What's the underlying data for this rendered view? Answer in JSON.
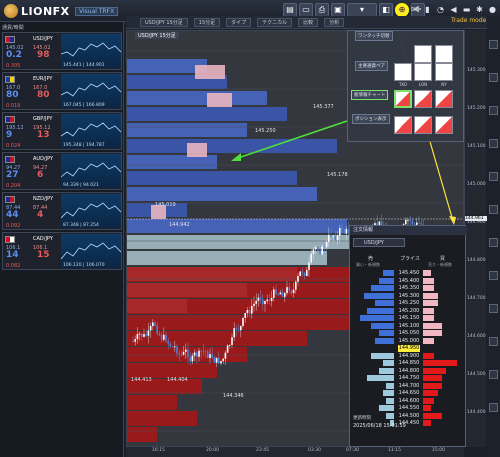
{
  "app": {
    "brand": "LIONFX",
    "version": "Visual TRFX"
  },
  "top_toolbar": {
    "icons": [
      "chart-add-icon",
      "window-icon",
      "print-icon",
      "save-icon",
      "settings-toggle-icon",
      "crosshair-icon",
      "envelope-icon",
      "lock-icon",
      "bell-icon",
      "speaker-icon",
      "chat-icon",
      "gear-icon",
      "person-icon",
      "help-icon",
      "close-icon"
    ]
  },
  "left_panel": {
    "title": "通貨/時間",
    "pairs": [
      {
        "symbol": "USD/JPY",
        "bid_label": "Bid",
        "ask_label": "Ask",
        "bid_small": "145.02",
        "big_bid": "0.2",
        "big_ask": "98",
        "ask_small": "145.02",
        "change": "0.305",
        "range": "145.441 | 144.901",
        "flag_colors": [
          "#c8102e",
          "#1b2a8c"
        ]
      },
      {
        "symbol": "EUR/JPY",
        "bid_label": "Bid",
        "ask_label": "Ask",
        "bid_small": "167.0",
        "big_bid": "80",
        "big_ask": "80",
        "ask_small": "167.0",
        "change": "0.019",
        "range": "167.045 | 166.809",
        "flag_colors": [
          "#1b3fa0",
          "#f5d100"
        ]
      },
      {
        "symbol": "GBP/JPY",
        "bid_label": "Bid",
        "ask_label": "Ask",
        "bid_small": "195.12",
        "big_bid": "9",
        "big_ask": "13",
        "ask_small": "195.12",
        "change": "0.024",
        "range": "195.348 | 194.787",
        "flag_colors": [
          "#1b2a8c",
          "#c8102e"
        ]
      },
      {
        "symbol": "AUD/JPY",
        "bid_label": "Bid",
        "ask_label": "Ask",
        "bid_small": "94.27",
        "big_bid": "27",
        "big_ask": "6",
        "ask_small": "94.27",
        "change": "0.204",
        "range": "94.339 | 94.021",
        "flag_colors": [
          "#1b2a8c",
          "#c8102e"
        ]
      },
      {
        "symbol": "NZD/JPY",
        "bid_label": "Bid",
        "ask_label": "Ask",
        "bid_small": "87.44",
        "big_bid": "44",
        "big_ask": "4",
        "ask_small": "87.44",
        "change": "0.092",
        "range": "87.348 | 87.254",
        "flag_colors": [
          "#1b2a8c",
          "#c8102e"
        ]
      },
      {
        "symbol": "CAD/JPY",
        "bid_label": "Bid",
        "ask_label": "Ask",
        "bid_small": "106.1",
        "big_bid": "14",
        "big_ask": "15",
        "ask_small": "106.1",
        "change": "0.082",
        "range": "106.120 | 106.070",
        "flag_colors": [
          "#d80621",
          "#ffffff"
        ]
      }
    ]
  },
  "chart_toolbar": {
    "items": [
      "USD/JPY 15分足",
      "15分足",
      "タイプ",
      "テクニカル",
      "比較",
      "分析"
    ],
    "trade_mode": "Trade mode"
  },
  "chart": {
    "pair_label": "USD/JPY 15分足",
    "price_ticks": [
      "145.300",
      "145.200",
      "145.100",
      "145.000",
      "144.900",
      "144.800",
      "144.700",
      "144.600",
      "144.500",
      "144.400"
    ],
    "current_price_tag": "144.961",
    "time_ticks": [
      "16:15",
      "20:00",
      "23:45",
      "03:30",
      "07:30",
      "11:15",
      "15:00"
    ],
    "annotations": [
      "145.377",
      "145.250",
      "145.178",
      "144.942",
      "145.019",
      "144.413",
      "144.404",
      "144.346"
    ]
  },
  "settings_panel": {
    "top_label": "ワンタッチ切替",
    "main_button": "主要通貨ペア",
    "zero_label": "0",
    "currency_buttons": [
      "TKO",
      "LON",
      "NY"
    ],
    "order_panel_button": "注文情報",
    "orderbook_chart_button": "板情報チャート",
    "position_button": "ポジション表示",
    "grid_labels": [
      "気配値",
      "売買比",
      "未決済",
      "気配値",
      "売買比",
      "未決済"
    ]
  },
  "orderbook": {
    "title": "注文情報",
    "pair": "USD/JPY",
    "col_left": "売",
    "col_mid": "プライス",
    "col_right": "買",
    "sub_left": "買い・新規数",
    "sub_right": "売り・新規数",
    "current": "144.950",
    "prices_above": [
      "145.450",
      "145.400",
      "145.350",
      "145.300",
      "145.250",
      "145.200",
      "145.150",
      "145.100",
      "145.050",
      "145.000"
    ],
    "prices_below": [
      "144.900",
      "144.850",
      "144.800",
      "144.750",
      "144.700",
      "144.650",
      "144.600",
      "144.550",
      "144.500",
      "144.450"
    ],
    "footer_label": "更新時刻",
    "footer_time": "2025/06/18 15:01:59",
    "sell_depth": [
      0.3,
      0.4,
      0.6,
      0.8,
      0.5,
      0.7,
      0.9,
      0.6,
      0.4,
      0.5
    ],
    "buy_depth": [
      0.2,
      0.3,
      0.3,
      0.4,
      0.4,
      0.3,
      0.3,
      0.5,
      0.5,
      0.3
    ],
    "sell_depth_below": [
      0.6,
      0.3,
      0.4,
      0.7,
      0.2,
      0.3,
      0.2,
      0.4,
      0.2,
      0.1
    ],
    "buy_depth_below": [
      0.3,
      0.9,
      0.6,
      0.5,
      0.5,
      0.4,
      0.3,
      0.2,
      0.5,
      0.2
    ]
  }
}
